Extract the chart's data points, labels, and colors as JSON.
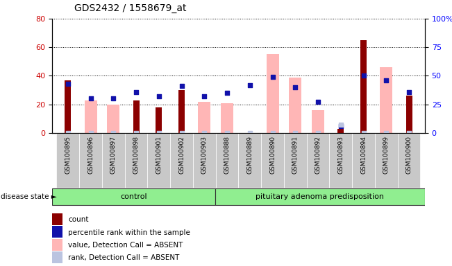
{
  "title": "GDS2432 / 1558679_at",
  "samples": [
    "GSM100895",
    "GSM100896",
    "GSM100897",
    "GSM100898",
    "GSM100901",
    "GSM100902",
    "GSM100903",
    "GSM100888",
    "GSM100889",
    "GSM100890",
    "GSM100891",
    "GSM100892",
    "GSM100893",
    "GSM100894",
    "GSM100899",
    "GSM100900"
  ],
  "count": [
    37,
    0,
    0,
    23,
    18,
    30,
    0,
    0,
    0,
    0,
    0,
    0,
    3,
    65,
    0,
    26
  ],
  "percentile_rank": [
    43,
    30,
    30,
    36,
    32,
    41,
    32,
    35,
    42,
    49,
    40,
    27,
    6,
    50,
    46,
    36
  ],
  "value_absent": [
    0,
    23,
    20,
    0,
    0,
    0,
    22,
    21,
    0,
    55,
    39,
    16,
    0,
    0,
    46,
    0
  ],
  "rank_absent": [
    0,
    0,
    0,
    0,
    0,
    0,
    0,
    0,
    0,
    0,
    0,
    0,
    7,
    0,
    0,
    0
  ],
  "n_control": 7,
  "n_disease": 9,
  "left_ylim": [
    0,
    80
  ],
  "right_ylim": [
    0,
    100
  ],
  "left_yticks": [
    0,
    20,
    40,
    60,
    80
  ],
  "right_yticks": [
    0,
    25,
    50,
    75,
    100
  ],
  "color_count": "#8B0000",
  "color_percentile": "#1111AA",
  "color_value_absent": "#FFB6B6",
  "color_rank_absent": "#BBC4E0",
  "control_label": "control",
  "disease_label": "pituitary adenoma predisposition",
  "disease_state_label": "disease state",
  "legend_labels": [
    "count",
    "percentile rank within the sample",
    "value, Detection Call = ABSENT",
    "rank, Detection Call = ABSENT"
  ]
}
